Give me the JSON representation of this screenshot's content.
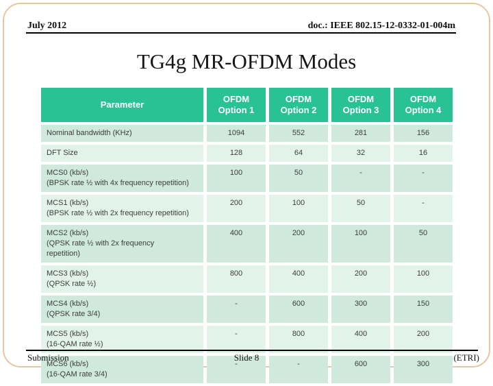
{
  "header": {
    "date": "July 2012",
    "doc": "doc.: IEEE 802.15-12-0332-01-004m"
  },
  "title": "TG4g MR-OFDM Modes",
  "table": {
    "parameter_header": "Parameter",
    "columns": [
      "OFDM Option 1",
      "OFDM Option 2",
      "OFDM Option 3",
      "OFDM Option 4"
    ],
    "rows": [
      {
        "label": "Nominal bandwidth (KHz)",
        "sublines": [],
        "values": [
          "1094",
          "552",
          "281",
          "156"
        ]
      },
      {
        "label": "DFT Size",
        "sublines": [],
        "values": [
          "128",
          "64",
          "32",
          "16"
        ]
      },
      {
        "label": "MCS0 (kb/s)",
        "sublines": [
          "(BPSK rate ½ with 4x frequency repetition)"
        ],
        "values": [
          "100",
          "50",
          "-",
          "-"
        ]
      },
      {
        "label": "MCS1 (kb/s)",
        "sublines": [
          "(BPSK rate ½ with 2x frequency repetition)"
        ],
        "values": [
          "200",
          "100",
          "50",
          "-"
        ]
      },
      {
        "label": "MCS2 (kb/s)",
        "sublines": [
          "(QPSK rate ½ with 2x frequency",
          "repetition)"
        ],
        "values": [
          "400",
          "200",
          "100",
          "50"
        ]
      },
      {
        "label": "MCS3 (kb/s)",
        "sublines": [
          "(QPSK rate ½)"
        ],
        "values": [
          "800",
          "400",
          "200",
          "100"
        ]
      },
      {
        "label": "MCS4 (kb/s)",
        "sublines": [
          "(QPSK rate 3/4)"
        ],
        "values": [
          "-",
          "600",
          "300",
          "150"
        ]
      },
      {
        "label": "MCS5 (kb/s)",
        "sublines": [
          "(16-QAM rate ½)"
        ],
        "values": [
          "-",
          "800",
          "400",
          "200"
        ]
      },
      {
        "label": "MCS6 (kb/s)",
        "sublines": [
          "(16-QAM rate 3/4)"
        ],
        "values": [
          "-",
          "-",
          "600",
          "300"
        ]
      }
    ]
  },
  "footer": {
    "left": "Submission",
    "center": "Slide 8",
    "right": "(ETRI)"
  },
  "colors": {
    "header_bg": "#28c294",
    "row_dark": "#cfe9dc",
    "row_light": "#e2f3ea",
    "header_text": "#ffffff",
    "cell_text": "#3c3c3c",
    "border_tan": "#e7c79e"
  }
}
